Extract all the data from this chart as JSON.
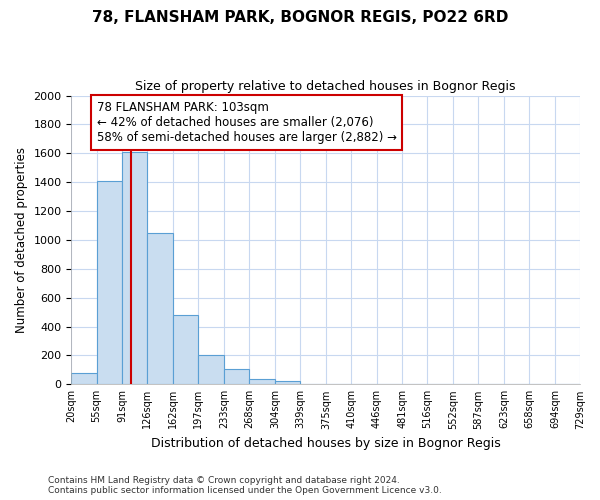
{
  "title": "78, FLANSHAM PARK, BOGNOR REGIS, PO22 6RD",
  "subtitle": "Size of property relative to detached houses in Bognor Regis",
  "xlabel": "Distribution of detached houses by size in Bognor Regis",
  "ylabel": "Number of detached properties",
  "bar_color": "#c9ddf0",
  "bar_edge_color": "#5a9fd4",
  "bin_edges": [
    20,
    55,
    91,
    126,
    162,
    197,
    233,
    268,
    304,
    339,
    375,
    410,
    446,
    481,
    516,
    552,
    587,
    623,
    658,
    694,
    729
  ],
  "bar_heights": [
    80,
    1410,
    1610,
    1050,
    480,
    200,
    105,
    35,
    20,
    0,
    0,
    0,
    0,
    0,
    0,
    0,
    0,
    0,
    0,
    0
  ],
  "property_size": 103,
  "vline_color": "#cc0000",
  "annotation_text": "78 FLANSHAM PARK: 103sqm\n← 42% of detached houses are smaller (2,076)\n58% of semi-detached houses are larger (2,882) →",
  "annotation_box_color": "#ffffff",
  "annotation_box_edge": "#cc0000",
  "ylim": [
    0,
    2000
  ],
  "yticks": [
    0,
    200,
    400,
    600,
    800,
    1000,
    1200,
    1400,
    1600,
    1800,
    2000
  ],
  "footer_line1": "Contains HM Land Registry data © Crown copyright and database right 2024.",
  "footer_line2": "Contains public sector information licensed under the Open Government Licence v3.0.",
  "background_color": "#ffffff",
  "grid_color": "#c8d8f0"
}
